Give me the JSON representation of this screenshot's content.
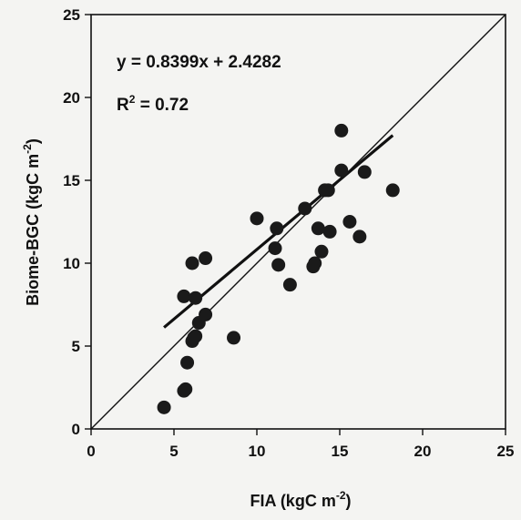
{
  "chart_data": {
    "type": "scatter",
    "xlabel": "FIA (kgC m",
    "xlabel_sup": "-2",
    "xlabel_end": ")",
    "ylabel": "Biome-BGC (kgC m",
    "ylabel_sup": "-2",
    "ylabel_end": ")",
    "xlim": [
      0,
      25
    ],
    "ylim": [
      0,
      25
    ],
    "xticks": [
      0,
      5,
      10,
      15,
      20,
      25
    ],
    "yticks": [
      0,
      5,
      10,
      15,
      20,
      25
    ],
    "grid": false,
    "equation": "y =  0.8399x + 2.4282",
    "r2_label": "R",
    "r2_sup": "2",
    "r2_value": " = 0.72",
    "regression": {
      "slope": 0.8399,
      "intercept": 2.4282,
      "x_range": [
        4.4,
        18.2
      ]
    },
    "one_to_one_line": true,
    "points": [
      {
        "x": 4.4,
        "y": 1.3
      },
      {
        "x": 5.6,
        "y": 2.3
      },
      {
        "x": 5.7,
        "y": 2.4
      },
      {
        "x": 5.8,
        "y": 4.0
      },
      {
        "x": 6.1,
        "y": 5.3
      },
      {
        "x": 6.3,
        "y": 5.6
      },
      {
        "x": 6.2,
        "y": 5.5
      },
      {
        "x": 6.5,
        "y": 6.4
      },
      {
        "x": 6.9,
        "y": 6.9
      },
      {
        "x": 5.6,
        "y": 8.0
      },
      {
        "x": 6.3,
        "y": 7.9
      },
      {
        "x": 6.1,
        "y": 10.0
      },
      {
        "x": 6.9,
        "y": 10.3
      },
      {
        "x": 8.6,
        "y": 5.5
      },
      {
        "x": 10.0,
        "y": 12.7
      },
      {
        "x": 11.1,
        "y": 10.9
      },
      {
        "x": 11.2,
        "y": 12.1
      },
      {
        "x": 11.3,
        "y": 9.9
      },
      {
        "x": 12.0,
        "y": 8.7
      },
      {
        "x": 12.9,
        "y": 13.3
      },
      {
        "x": 13.4,
        "y": 9.8
      },
      {
        "x": 13.5,
        "y": 10.0
      },
      {
        "x": 13.7,
        "y": 12.1
      },
      {
        "x": 13.9,
        "y": 10.7
      },
      {
        "x": 14.1,
        "y": 14.4
      },
      {
        "x": 14.3,
        "y": 14.4
      },
      {
        "x": 14.4,
        "y": 11.9
      },
      {
        "x": 15.1,
        "y": 15.6
      },
      {
        "x": 15.1,
        "y": 18.0
      },
      {
        "x": 15.6,
        "y": 12.5
      },
      {
        "x": 16.2,
        "y": 11.6
      },
      {
        "x": 16.5,
        "y": 15.5
      },
      {
        "x": 18.2,
        "y": 14.4
      }
    ]
  }
}
